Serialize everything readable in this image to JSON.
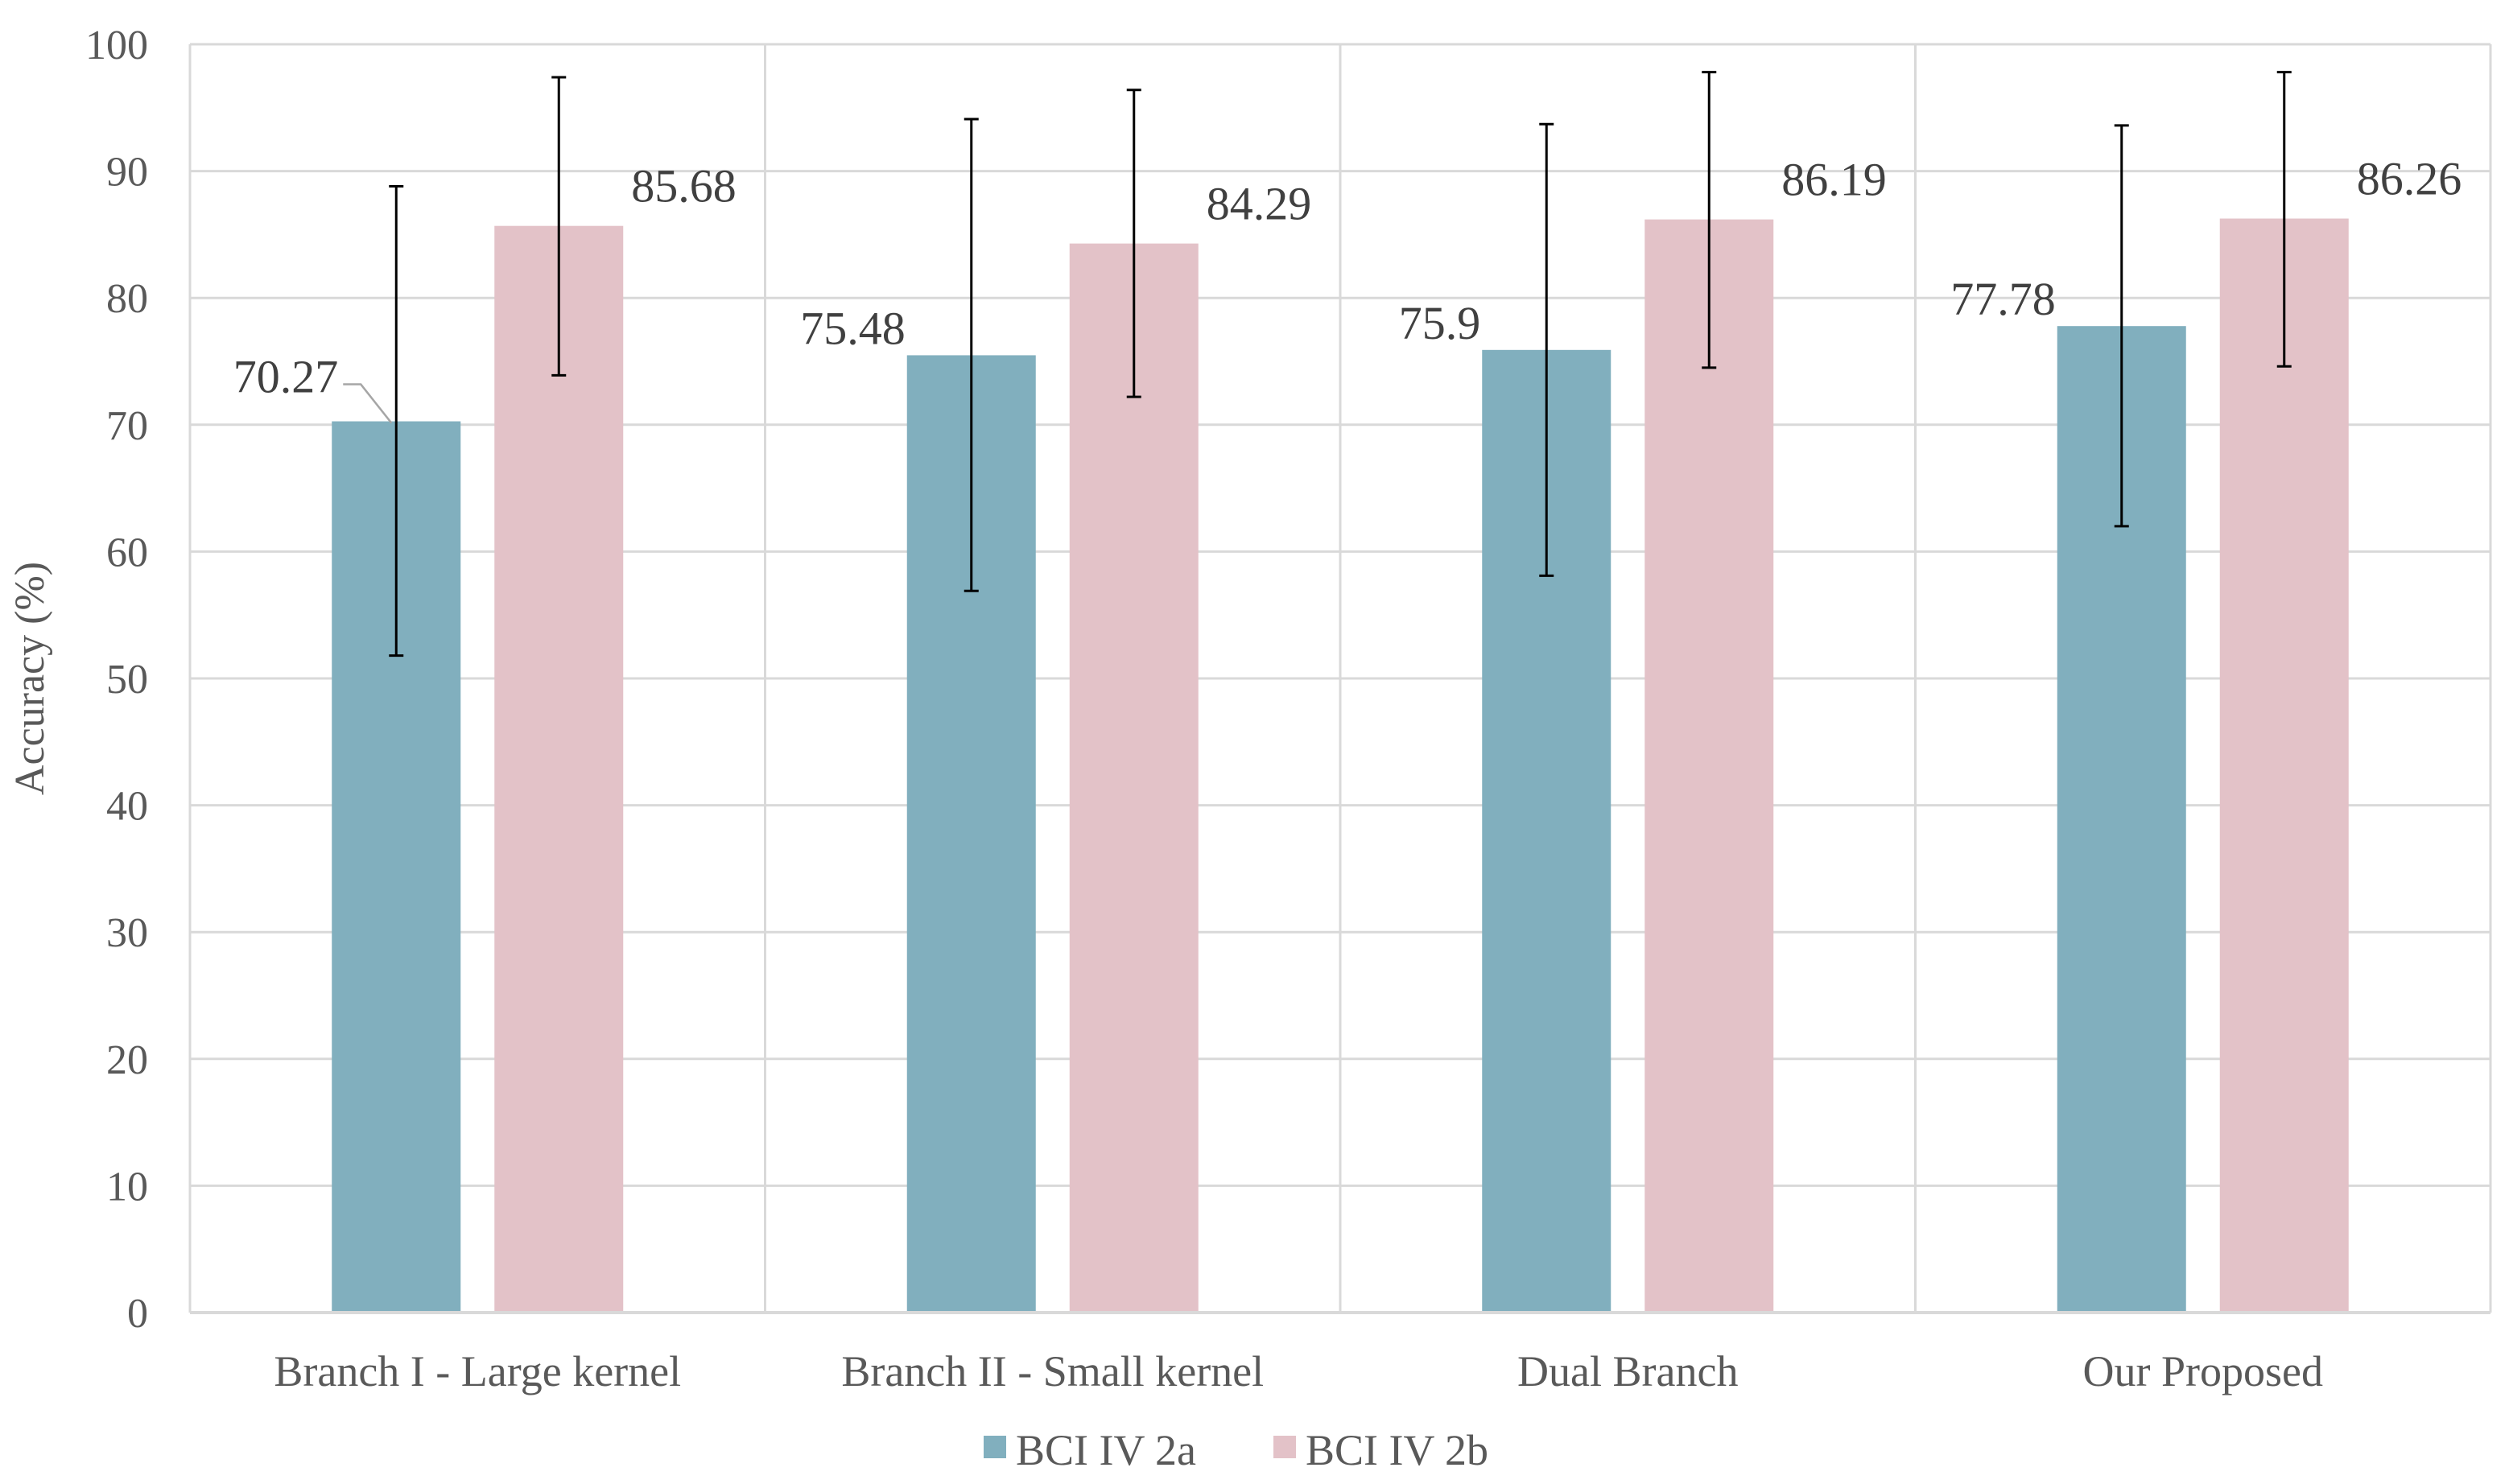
{
  "chart_data": {
    "type": "bar",
    "title": "",
    "xlabel": "",
    "ylabel": "Accuracy (%)",
    "ylim": [
      0,
      100
    ],
    "yticks": [
      0,
      10,
      20,
      30,
      40,
      50,
      60,
      70,
      80,
      90,
      100
    ],
    "grid": true,
    "legend_position": "bottom",
    "categories": [
      "Branch I - Large kernel",
      "Branch II - Small kernel",
      "Dual Branch",
      "Our Proposed"
    ],
    "series": [
      {
        "name": "BCI IV 2a",
        "color": "#81AFBE",
        "values": [
          70.27,
          75.48,
          75.9,
          77.78
        ],
        "labels": [
          "70.27",
          "75.48",
          "75.9",
          "77.78"
        ],
        "error_low": [
          51.8,
          56.9,
          58.1,
          62.0
        ],
        "error_high": [
          88.8,
          94.1,
          93.7,
          93.6
        ]
      },
      {
        "name": "BCI IV 2b",
        "color": "#E3C2C8",
        "values": [
          85.68,
          84.29,
          86.19,
          86.26
        ],
        "labels": [
          "85.68",
          "84.29",
          "86.19",
          "86.26"
        ],
        "error_low": [
          73.9,
          72.2,
          74.5,
          74.6
        ],
        "error_high": [
          97.4,
          96.4,
          97.8,
          97.8
        ]
      }
    ]
  }
}
